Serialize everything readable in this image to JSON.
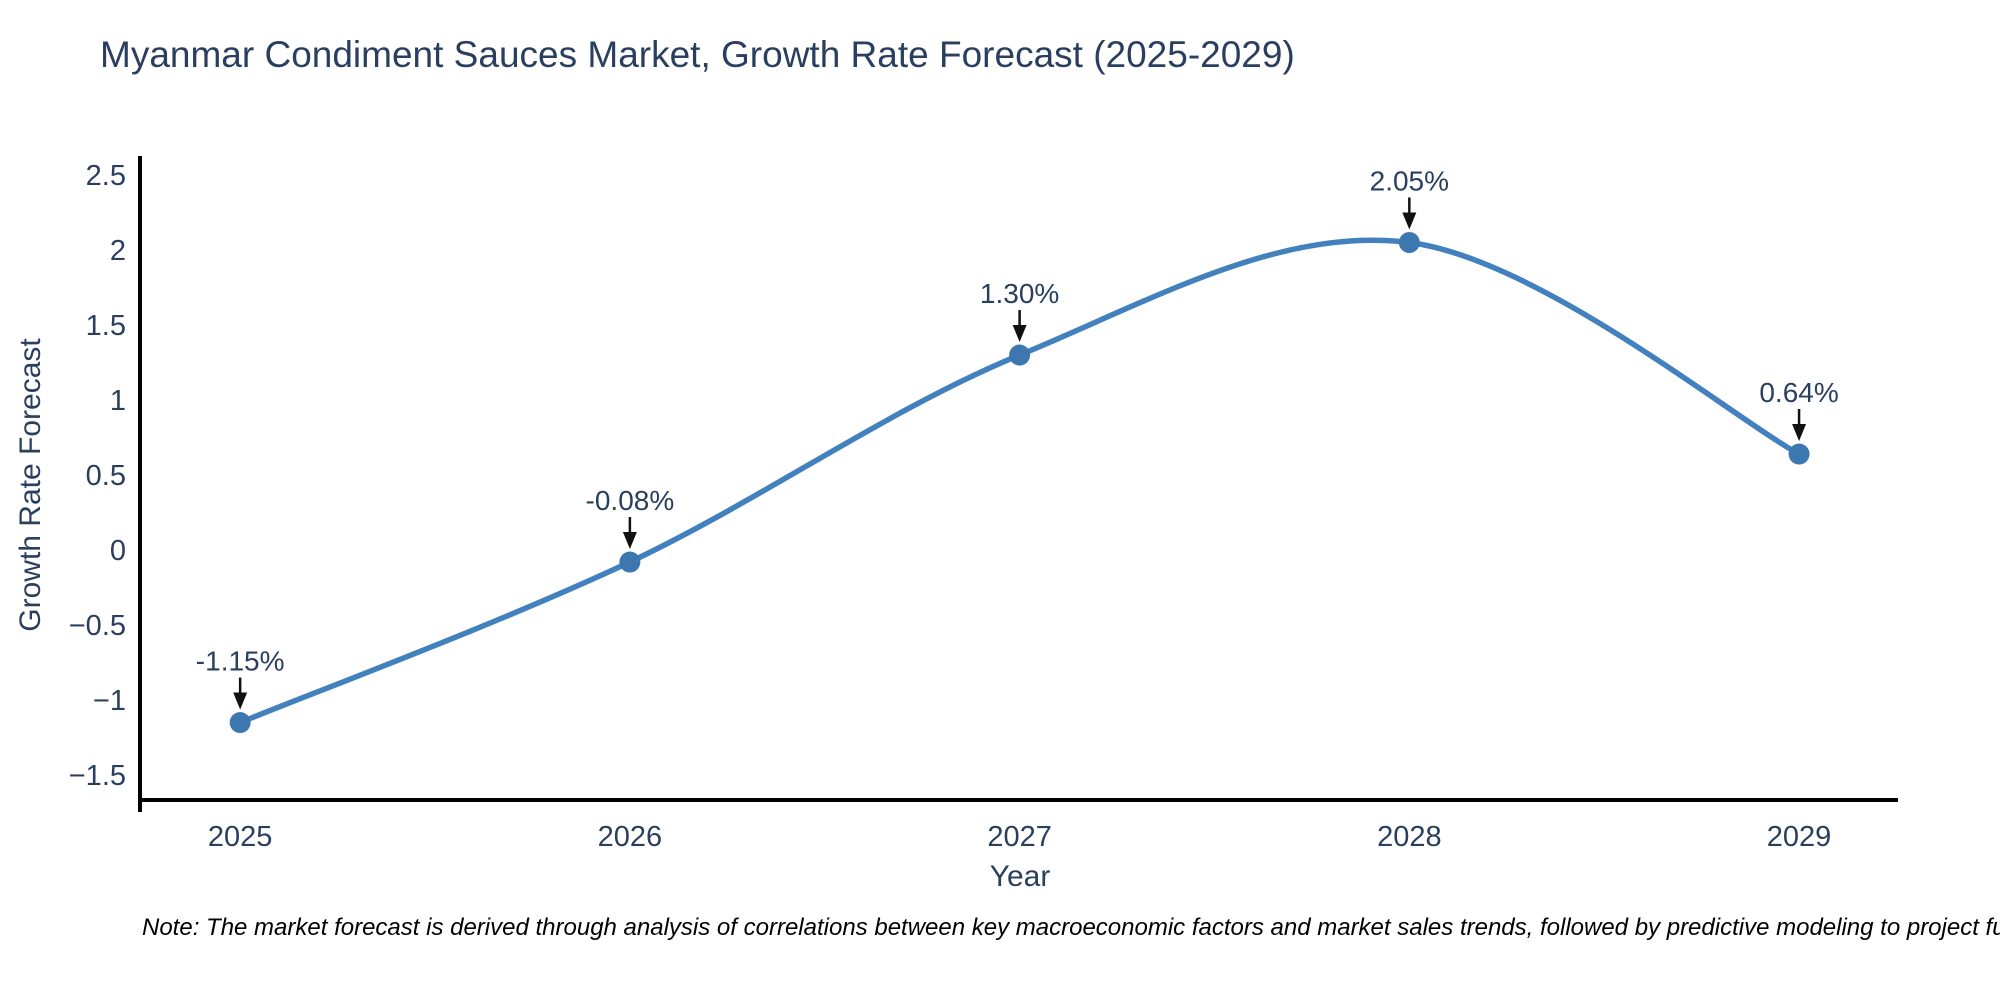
{
  "chart_data": {
    "type": "line",
    "title": "Myanmar Condiment Sauces Market, Growth Rate Forecast (2025-2029)",
    "xlabel": "Year",
    "ylabel": "Growth Rate Forecast",
    "categories": [
      "2025",
      "2026",
      "2027",
      "2028",
      "2029"
    ],
    "series": [
      {
        "name": "Growth Rate Forecast",
        "values": [
          -1.15,
          -0.08,
          1.3,
          2.05,
          0.64
        ],
        "point_labels": [
          "-1.15%",
          "-0.08%",
          "1.30%",
          "2.05%",
          "0.64%"
        ]
      }
    ],
    "line_shape": "spline",
    "markers": true,
    "grid": false,
    "legend": false,
    "yticks": [
      2.5,
      2,
      1.5,
      1,
      0.5,
      0,
      -0.5,
      -1,
      -1.5
    ],
    "ytick_labels": [
      "2.5",
      "2",
      "1.5",
      "1",
      "0.5",
      "0",
      "−0.5",
      "−1",
      "−1.5"
    ],
    "ylim": [
      -1.733,
      2.6
    ],
    "xlim": [
      -0.257,
      4.259
    ],
    "colors": {
      "line": "#4281bd",
      "marker": "#3d77b0",
      "axis": "#000000",
      "text": "#2a3f5f",
      "arrow": "#111111",
      "background": "#ffffff"
    },
    "note": "Note: The market forecast is derived through analysis of correlations between key macroeconomic factors and market sales trends, followed by predictive modeling to project future sales"
  }
}
